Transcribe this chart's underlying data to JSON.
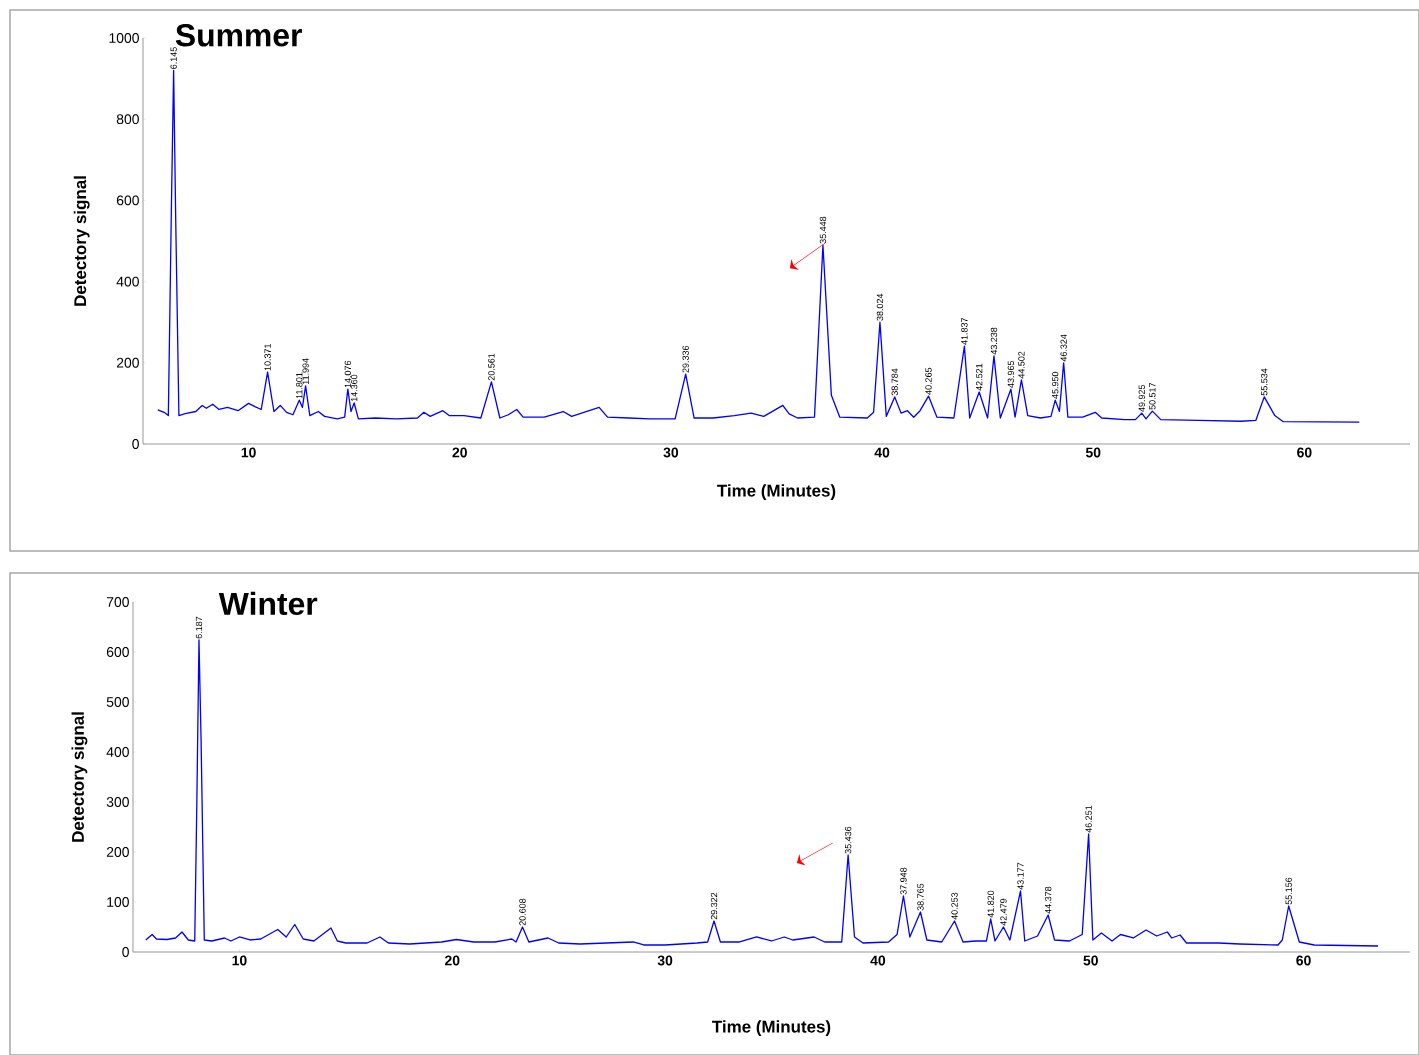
{
  "chart_data": [
    {
      "type": "line",
      "title": "Summer",
      "xlabel": "Time (Minutes)",
      "ylabel": "Detectory signal",
      "xlim": [
        5,
        65
      ],
      "ylim": [
        0,
        1000
      ],
      "xticks": [
        10,
        20,
        30,
        40,
        50,
        60
      ],
      "yticks": [
        0,
        200,
        400,
        600,
        800,
        1000
      ],
      "x": [
        5.7,
        6.0,
        6.2,
        6.35,
        6.45,
        6.55,
        6.7,
        7.0,
        7.5,
        7.8,
        8.0,
        8.3,
        8.6,
        9.0,
        9.5,
        10.0,
        10.3,
        10.6,
        10.9,
        11.2,
        11.5,
        11.8,
        12.1,
        12.4,
        12.55,
        12.7,
        12.9,
        13.3,
        13.6,
        14.2,
        14.55,
        14.7,
        14.85,
        15.0,
        15.2,
        16,
        17,
        18,
        18.3,
        18.6,
        19.2,
        19.5,
        20.2,
        21.0,
        21.5,
        21.9,
        22.3,
        22.7,
        23.0,
        24,
        24.9,
        25.3,
        26.6,
        27,
        28,
        29,
        30.2,
        30.7,
        31.1,
        32,
        33,
        33.8,
        34.4,
        35.3,
        35.6,
        36,
        36.8,
        37.2,
        37.6,
        38,
        39.3,
        39.6,
        39.9,
        40.2,
        40.6,
        40.9,
        41.2,
        41.5,
        41.8,
        42.2,
        42.6,
        43.4,
        43.9,
        44.15,
        44.6,
        45.0,
        45.3,
        45.6,
        46.1,
        46.3,
        46.6,
        46.9,
        47.5,
        48.0,
        48.2,
        48.4,
        48.6,
        48.8,
        49.5,
        50.1,
        50.4,
        51.5,
        52.0,
        52.3,
        52.5,
        52.8,
        53.2,
        55,
        57,
        57.7,
        58.1,
        58.6,
        59,
        62.6
      ],
      "series": [
        {
          "color": "#0000ff",
          "values": [
            84,
            78,
            70,
            600,
            920,
            550,
            70,
            75,
            80,
            95,
            88,
            98,
            85,
            90,
            82,
            100,
            92,
            85,
            177,
            80,
            95,
            78,
            72,
            108,
            90,
            143,
            70,
            80,
            68,
            62,
            66,
            135,
            80,
            101,
            62,
            64,
            62,
            64,
            78,
            68,
            82,
            70,
            70,
            64,
            153,
            64,
            72,
            85,
            66,
            66,
            80,
            68,
            90,
            66,
            64,
            62,
            62,
            172,
            64,
            64,
            70,
            76,
            68,
            95,
            74,
            64,
            66,
            490,
            120,
            66,
            64,
            78,
            300,
            68,
            116,
            76,
            82,
            66,
            82,
            118,
            66,
            64,
            241,
            64,
            128,
            64,
            217,
            64,
            135,
            66,
            158,
            70,
            64,
            68,
            108,
            80,
            200,
            66,
            66,
            78,
            64,
            60,
            60,
            76,
            62,
            81,
            60,
            58,
            56,
            58,
            116,
            70,
            55,
            54
          ]
        }
      ],
      "annotations": [
        {
          "text": "6.145",
          "x": 6.45,
          "y": 920
        },
        {
          "text": "10.371",
          "x": 10.9,
          "y": 177
        },
        {
          "text": "11.801",
          "x": 12.4,
          "y": 108
        },
        {
          "text": "11.994",
          "x": 12.7,
          "y": 143
        },
        {
          "text": "14.076",
          "x": 14.7,
          "y": 135
        },
        {
          "text": "14.360",
          "x": 15.0,
          "y": 101
        },
        {
          "text": "20.561",
          "x": 21.5,
          "y": 153
        },
        {
          "text": "29.336",
          "x": 30.7,
          "y": 172
        },
        {
          "text": "35.448",
          "x": 37.2,
          "y": 490
        },
        {
          "text": "38.024",
          "x": 39.9,
          "y": 300
        },
        {
          "text": "38.784",
          "x": 40.6,
          "y": 116
        },
        {
          "text": "40.265",
          "x": 42.2,
          "y": 118
        },
        {
          "text": "41.837",
          "x": 43.9,
          "y": 241
        },
        {
          "text": "42.521",
          "x": 44.6,
          "y": 128
        },
        {
          "text": "43.238",
          "x": 45.3,
          "y": 217
        },
        {
          "text": "43.965",
          "x": 46.1,
          "y": 135
        },
        {
          "text": "44.502",
          "x": 46.6,
          "y": 158
        },
        {
          "text": "45.950",
          "x": 48.2,
          "y": 108
        },
        {
          "text": "46.324",
          "x": 48.6,
          "y": 200
        },
        {
          "text": "49.925",
          "x": 52.3,
          "y": 76
        },
        {
          "text": "50.517",
          "x": 52.8,
          "y": 81
        },
        {
          "text": "55.534",
          "x": 58.1,
          "y": 116
        }
      ]
    },
    {
      "type": "line",
      "title": "Winter",
      "xlabel": "Time (Minutes)",
      "ylabel": "Detectory signal",
      "xlim": [
        5,
        65
      ],
      "ylim": [
        0,
        700
      ],
      "xticks": [
        10,
        20,
        30,
        40,
        50,
        60
      ],
      "yticks": [
        0,
        100,
        200,
        300,
        400,
        500,
        600,
        700
      ],
      "x": [
        5.6,
        5.9,
        6.1,
        6.6,
        7.0,
        7.3,
        7.6,
        7.9,
        8.0,
        8.1,
        8.2,
        8.35,
        8.7,
        9.3,
        9.6,
        10,
        10.5,
        11,
        11.8,
        12.2,
        12.6,
        13.0,
        13.5,
        14.3,
        14.6,
        15,
        16,
        16.6,
        17,
        18,
        19.5,
        20.2,
        21,
        22,
        22.8,
        23.0,
        23.3,
        23.6,
        24.5,
        25,
        26,
        28.5,
        29,
        30,
        31.5,
        32.0,
        32.3,
        32.6,
        33.5,
        34.3,
        35,
        35.6,
        36,
        37,
        37.5,
        38.3,
        38.6,
        38.9,
        39.3,
        40.5,
        40.9,
        41.2,
        41.5,
        42.0,
        42.3,
        43.0,
        43.6,
        44.0,
        44.6,
        45.1,
        45.3,
        45.5,
        45.9,
        46.2,
        46.7,
        46.9,
        47.5,
        48.0,
        48.3,
        49,
        49.6,
        49.9,
        50.1,
        50.5,
        51,
        51.4,
        52,
        52.6,
        53.1,
        53.6,
        53.8,
        54.2,
        54.5,
        56,
        57,
        58.8,
        59.0,
        59.3,
        59.8,
        60.5,
        63.5
      ],
      "series": [
        {
          "color": "#0000ff",
          "values": [
            24,
            35,
            26,
            25,
            28,
            40,
            24,
            22,
            300,
            624,
            420,
            24,
            22,
            28,
            22,
            30,
            24,
            26,
            45,
            30,
            55,
            26,
            22,
            48,
            22,
            18,
            18,
            30,
            18,
            16,
            20,
            25,
            20,
            20,
            26,
            20,
            50,
            20,
            28,
            18,
            16,
            20,
            14,
            14,
            18,
            20,
            62,
            20,
            20,
            30,
            22,
            30,
            24,
            30,
            20,
            20,
            194,
            30,
            18,
            20,
            35,
            112,
            30,
            80,
            24,
            20,
            62,
            20,
            22,
            22,
            66,
            22,
            50,
            24,
            122,
            22,
            32,
            74,
            24,
            22,
            35,
            236,
            24,
            38,
            22,
            35,
            28,
            44,
            32,
            40,
            28,
            34,
            18,
            18,
            16,
            14,
            24,
            92,
            20,
            14,
            12
          ]
        }
      ],
      "annotations": [
        {
          "text": "6.187",
          "x": 8.1,
          "y": 624
        },
        {
          "text": "20.608",
          "x": 23.3,
          "y": 50
        },
        {
          "text": "29.322",
          "x": 32.3,
          "y": 62
        },
        {
          "text": "35.436",
          "x": 38.6,
          "y": 194
        },
        {
          "text": "37.948",
          "x": 41.2,
          "y": 112
        },
        {
          "text": "38.765",
          "x": 42.0,
          "y": 80
        },
        {
          "text": "40.253",
          "x": 43.6,
          "y": 62
        },
        {
          "text": "41.820",
          "x": 45.3,
          "y": 66
        },
        {
          "text": "42.479",
          "x": 45.9,
          "y": 50
        },
        {
          "text": "43.177",
          "x": 46.7,
          "y": 122
        },
        {
          "text": "44.378",
          "x": 48.0,
          "y": 74
        },
        {
          "text": "46.251",
          "x": 49.9,
          "y": 236
        },
        {
          "text": "55.156",
          "x": 59.3,
          "y": 92
        }
      ]
    }
  ]
}
